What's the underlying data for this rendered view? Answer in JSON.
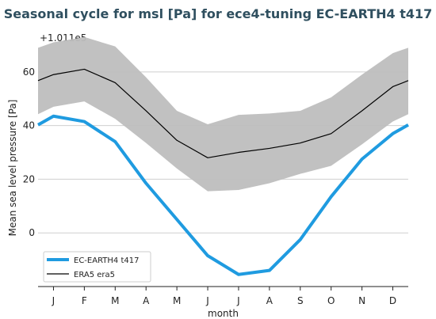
{
  "chart_data": {
    "type": "line",
    "title": "Seasonal cycle for msl [Pa] for ece4-tuning EC-EARTH4 t417",
    "offset_label": "+1.011e5",
    "xlabel": "month",
    "ylabel": "Mean sea level pressure [Pa]",
    "categories": [
      "J",
      "F",
      "M",
      "A",
      "M",
      "J",
      "J",
      "A",
      "S",
      "O",
      "N",
      "D"
    ],
    "yticks": [
      0,
      20,
      40,
      60
    ],
    "ylim": [
      -20,
      75
    ],
    "grid": true,
    "legend_position": "lower-left",
    "colors": {
      "model": "#1f9be0",
      "obs": "#000000",
      "band": "#bebebe",
      "title": "#2f4f5f"
    },
    "series": [
      {
        "name": "EC-EARTH4 t417",
        "values": [
          43.5,
          41.5,
          34,
          18.5,
          5,
          -8.5,
          -15.5,
          -14,
          -2.5,
          13.5,
          27.5,
          37
        ]
      },
      {
        "name": "ERA5 era5",
        "values": [
          59,
          61,
          56,
          45.5,
          34.5,
          28,
          30,
          31.5,
          33.5,
          37,
          45.5,
          54.5
        ]
      }
    ],
    "band": {
      "upper": [
        71,
        73,
        69.5,
        58,
        45.5,
        40.5,
        44,
        44.5,
        45.5,
        50.5,
        59,
        67
      ],
      "lower": [
        47,
        49,
        42.5,
        33.5,
        24,
        15.5,
        16,
        18.5,
        22,
        25,
        33,
        41.5
      ]
    }
  }
}
